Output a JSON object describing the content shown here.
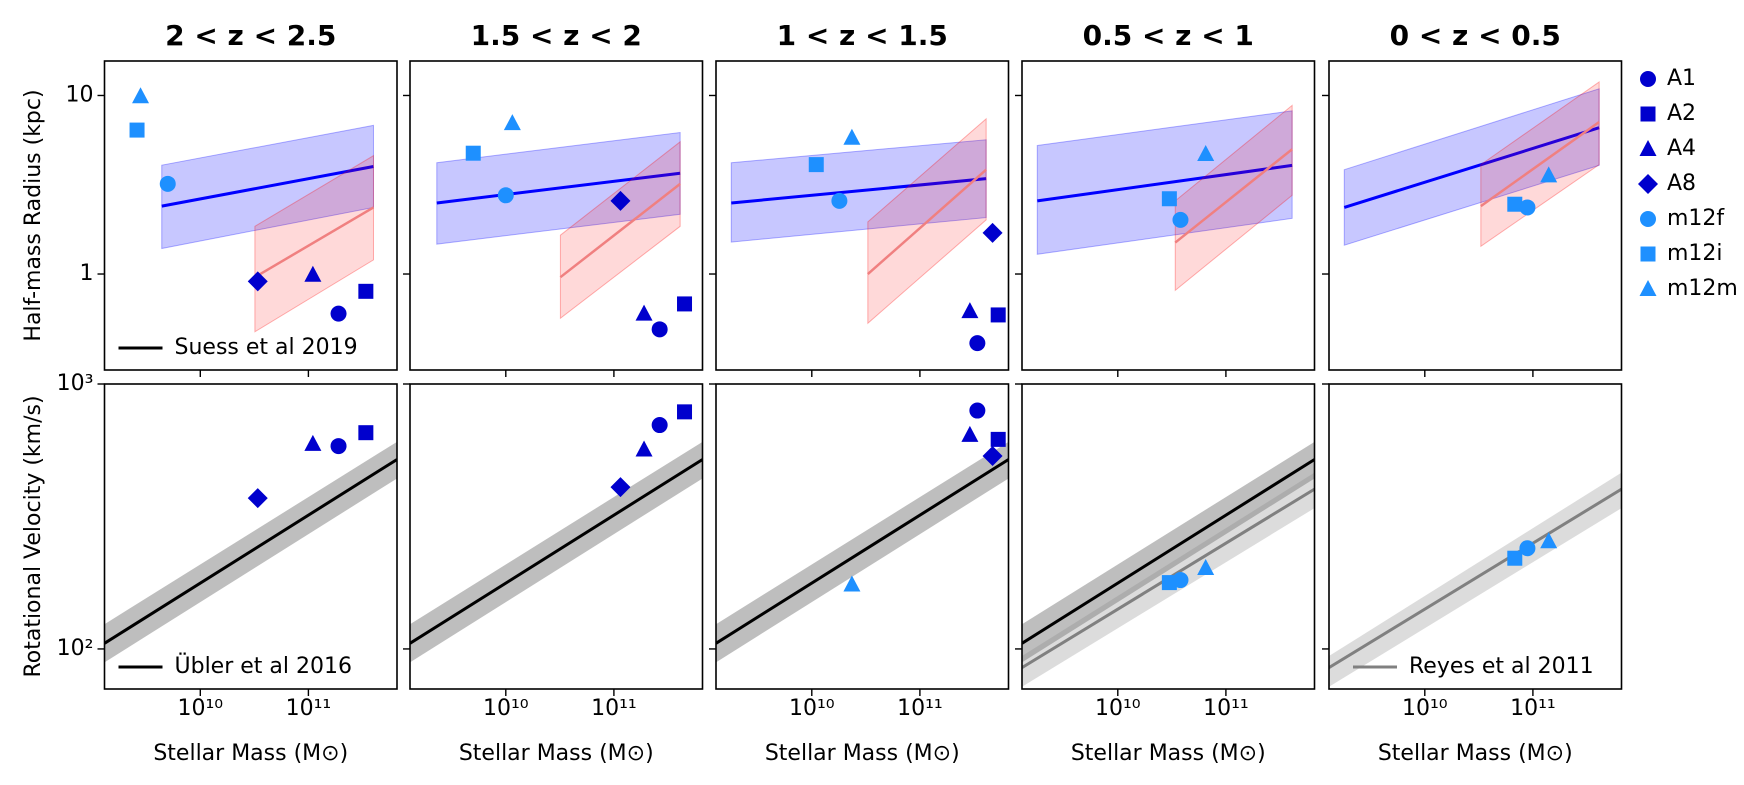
{
  "chart_data": {
    "type": "scatter",
    "xlabel": "Stellar Mass (M⊙)",
    "xlim": [
      1300000000.0,
      660000000000.0
    ],
    "xticks": [
      {
        "value": 10000000000.0,
        "label": "10¹⁰"
      },
      {
        "value": 100000000000.0,
        "label": "10¹¹"
      }
    ],
    "log_x": true,
    "log_y": true,
    "radius_axis": {
      "ylabel": "Half-mass Radius (kpc)",
      "ylim": [
        0.29,
        15.6
      ],
      "yticks": [
        1,
        10
      ]
    },
    "velocity_axis": {
      "ylabel": "Rotational Velocity (km/s)",
      "ylim": [
        70.6,
        1000
      ],
      "yticks": [
        {
          "value": 100,
          "label": "10²"
        },
        {
          "value": 1000,
          "label": "10³"
        }
      ]
    },
    "legend": [
      {
        "name": "A1",
        "color": "#0000cd",
        "marker": "circle"
      },
      {
        "name": "A2",
        "color": "#0000cd",
        "marker": "square"
      },
      {
        "name": "A4",
        "color": "#0000cd",
        "marker": "triangle"
      },
      {
        "name": "A8",
        "color": "#0000cd",
        "marker": "diamond"
      },
      {
        "name": "m12f",
        "color": "#1e90ff",
        "marker": "circle"
      },
      {
        "name": "m12i",
        "color": "#1e90ff",
        "marker": "square"
      },
      {
        "name": "m12m",
        "color": "#1e90ff",
        "marker": "triangle"
      }
    ],
    "panels": [
      {
        "title": "2 < z < 2.5",
        "radius_legend": {
          "name": "Suess et al 2019",
          "color": "#000000"
        },
        "velocity_legend": {
          "name": "Übler et al 2016",
          "color": "#000000"
        },
        "radius": [
          {
            "name": "m12m",
            "x": 2800000000.0,
            "y": 9.9
          },
          {
            "name": "m12i",
            "x": 2600000000.0,
            "y": 6.4
          },
          {
            "name": "m12f",
            "x": 5000000000.0,
            "y": 3.2
          },
          {
            "name": "A8",
            "x": 34000000000.0,
            "y": 0.91
          },
          {
            "name": "A4",
            "x": 110000000000.0,
            "y": 0.99
          },
          {
            "name": "A1",
            "x": 190000000000.0,
            "y": 0.6
          },
          {
            "name": "A2",
            "x": 340000000000.0,
            "y": 0.8
          }
        ],
        "velocity": [
          {
            "name": "A8",
            "x": 34000000000.0,
            "y": 371
          },
          {
            "name": "A4",
            "x": 110000000000.0,
            "y": 594
          },
          {
            "name": "A1",
            "x": 190000000000.0,
            "y": 583
          },
          {
            "name": "A2",
            "x": 340000000000.0,
            "y": 655
          }
        ],
        "radius_fits": [
          {
            "color": "#0000ff",
            "x": [
              4400000000.0,
              400000000000.0
            ],
            "y": [
              2.4,
              4.0
            ],
            "lower": [
              1.39,
              2.36
            ],
            "upper": [
              4.07,
              6.8
            ]
          },
          {
            "color": "#ff0000",
            "x": [
              32000000000.0,
              400000000000.0
            ],
            "y": [
              0.96,
              2.36
            ],
            "lower": [
              0.475,
              1.2
            ],
            "upper": [
              1.85,
              4.6
            ]
          }
        ],
        "velocity_fits": [
          {
            "color": "#000000",
            "x": [
              1300000000.0,
              660000000000.0
            ],
            "y": [
              105,
              519
            ],
            "lower": [
              89,
              440
            ],
            "upper": [
              124,
              605
            ]
          }
        ]
      },
      {
        "title": "1.5 < z < 2",
        "radius": [
          {
            "name": "m12i",
            "x": 5000000000.0,
            "y": 4.75
          },
          {
            "name": "m12m",
            "x": 11500000000.0,
            "y": 7.0
          },
          {
            "name": "m12f",
            "x": 10000000000.0,
            "y": 2.76
          },
          {
            "name": "A8",
            "x": 115000000000.0,
            "y": 2.57
          },
          {
            "name": "A4",
            "x": 190000000000.0,
            "y": 0.6
          },
          {
            "name": "A1",
            "x": 265000000000.0,
            "y": 0.49
          },
          {
            "name": "A2",
            "x": 450000000000.0,
            "y": 0.68
          }
        ],
        "velocity": [
          {
            "name": "A8",
            "x": 115000000000.0,
            "y": 408
          },
          {
            "name": "A4",
            "x": 190000000000.0,
            "y": 566
          },
          {
            "name": "A1",
            "x": 265000000000.0,
            "y": 700
          },
          {
            "name": "A2",
            "x": 450000000000.0,
            "y": 785
          }
        ],
        "radius_fits": [
          {
            "color": "#0000ff",
            "x": [
              2300000000.0,
              410000000000.0
            ],
            "y": [
              2.5,
              3.67
            ],
            "lower": [
              1.47,
              2.16
            ],
            "upper": [
              4.2,
              6.2
            ]
          },
          {
            "color": "#ff0000",
            "x": [
              32000000000.0,
              410000000000.0
            ],
            "y": [
              0.96,
              3.2
            ],
            "lower": [
              0.565,
              1.85
            ],
            "upper": [
              1.65,
              5.5
            ]
          }
        ],
        "velocity_fits": [
          {
            "color": "#000000",
            "x": [
              1300000000.0,
              660000000000.0
            ],
            "y": [
              105,
              519
            ],
            "lower": [
              89,
              440
            ],
            "upper": [
              124,
              605
            ]
          }
        ]
      },
      {
        "title": "1 < z < 1.5",
        "radius": [
          {
            "name": "m12i",
            "x": 11000000000.0,
            "y": 4.1
          },
          {
            "name": "m12m",
            "x": 23500000000.0,
            "y": 5.8
          },
          {
            "name": "m12f",
            "x": 18000000000.0,
            "y": 2.57
          },
          {
            "name": "A8",
            "x": 470000000000.0,
            "y": 1.7
          },
          {
            "name": "A4",
            "x": 290000000000.0,
            "y": 0.62
          },
          {
            "name": "A1",
            "x": 340000000000.0,
            "y": 0.41
          },
          {
            "name": "A2",
            "x": 530000000000.0,
            "y": 0.59
          }
        ],
        "velocity": [
          {
            "name": "m12m",
            "x": 23500000000.0,
            "y": 175
          },
          {
            "name": "A1",
            "x": 340000000000.0,
            "y": 794
          },
          {
            "name": "A4",
            "x": 290000000000.0,
            "y": 643
          },
          {
            "name": "A2",
            "x": 530000000000.0,
            "y": 618
          },
          {
            "name": "A8",
            "x": 470000000000.0,
            "y": 535
          }
        ],
        "radius_fits": [
          {
            "color": "#0000ff",
            "x": [
              1800000000.0,
              410000000000.0
            ],
            "y": [
              2.5,
              3.42
            ],
            "lower": [
              1.51,
              2.07
            ],
            "upper": [
              4.2,
              5.65
            ]
          },
          {
            "color": "#ff0000",
            "x": [
              33000000000.0,
              410000000000.0
            ],
            "y": [
              1.0,
              3.84
            ],
            "lower": [
              0.53,
              2.01
            ],
            "upper": [
              1.96,
              7.4
            ]
          }
        ],
        "velocity_fits": [
          {
            "color": "#000000",
            "x": [
              1300000000.0,
              660000000000.0
            ],
            "y": [
              105,
              519
            ],
            "lower": [
              89,
              440
            ],
            "upper": [
              124,
              605
            ]
          }
        ]
      },
      {
        "title": "0.5 < z < 1",
        "radius": [
          {
            "name": "m12i",
            "x": 30000000000.0,
            "y": 2.64
          },
          {
            "name": "m12f",
            "x": 38000000000.0,
            "y": 2.01
          },
          {
            "name": "m12m",
            "x": 65000000000.0,
            "y": 4.7
          }
        ],
        "velocity": [
          {
            "name": "m12i",
            "x": 30000000000.0,
            "y": 178
          },
          {
            "name": "m12f",
            "x": 38000000000.0,
            "y": 182
          },
          {
            "name": "m12m",
            "x": 65000000000.0,
            "y": 202
          }
        ],
        "radius_fits": [
          {
            "color": "#0000ff",
            "x": [
              1800000000.0,
              410000000000.0
            ],
            "y": [
              2.57,
              4.06
            ],
            "lower": [
              1.29,
              2.05
            ],
            "upper": [
              5.25,
              8.2
            ]
          },
          {
            "color": "#ff0000",
            "x": [
              34000000000.0,
              410000000000.0
            ],
            "y": [
              1.5,
              5.0
            ],
            "lower": [
              0.81,
              2.76
            ],
            "upper": [
              2.57,
              8.8
            ]
          }
        ],
        "velocity_fits": [
          {
            "color": "#000000",
            "x": [
              1300000000.0,
              660000000000.0
            ],
            "y": [
              105,
              519
            ],
            "lower": [
              89,
              440
            ],
            "upper": [
              124,
              605
            ]
          },
          {
            "color": "#808080",
            "x": [
              1300000000.0,
              660000000000.0
            ],
            "y": [
              85,
              401
            ],
            "lower": [
              72,
              340
            ],
            "upper": [
              94,
              463
            ]
          }
        ]
      },
      {
        "title": "0 < z < 0.5",
        "velocity_legend": {
          "name": "Reyes et al 2011",
          "color": "#808080"
        },
        "radius": [
          {
            "name": "m12i",
            "x": 68000000000.0,
            "y": 2.46
          },
          {
            "name": "m12f",
            "x": 89000000000.0,
            "y": 2.36
          },
          {
            "name": "m12m",
            "x": 140000000000.0,
            "y": 3.57
          }
        ],
        "velocity": [
          {
            "name": "m12i",
            "x": 68000000000.0,
            "y": 220
          },
          {
            "name": "m12f",
            "x": 89000000000.0,
            "y": 240
          },
          {
            "name": "m12m",
            "x": 140000000000.0,
            "y": 255
          }
        ],
        "radius_fits": [
          {
            "color": "#0000ff",
            "x": [
              1800000000.0,
              410000000000.0
            ],
            "y": [
              2.36,
              6.6
            ],
            "lower": [
              1.45,
              4.06
            ],
            "upper": [
              3.84,
              10.9
            ]
          },
          {
            "color": "#ff0000",
            "x": [
              33000000000.0,
              410000000000.0
            ],
            "y": [
              2.4,
              7.1
            ],
            "lower": [
              1.43,
              4.1
            ],
            "upper": [
              4.1,
              11.9
            ]
          }
        ],
        "velocity_fits": [
          {
            "color": "#808080",
            "x": [
              1300000000.0,
              660000000000.0
            ],
            "y": [
              85,
              401
            ],
            "lower": [
              72,
              340
            ],
            "upper": [
              94,
              463
            ]
          }
        ]
      }
    ]
  }
}
